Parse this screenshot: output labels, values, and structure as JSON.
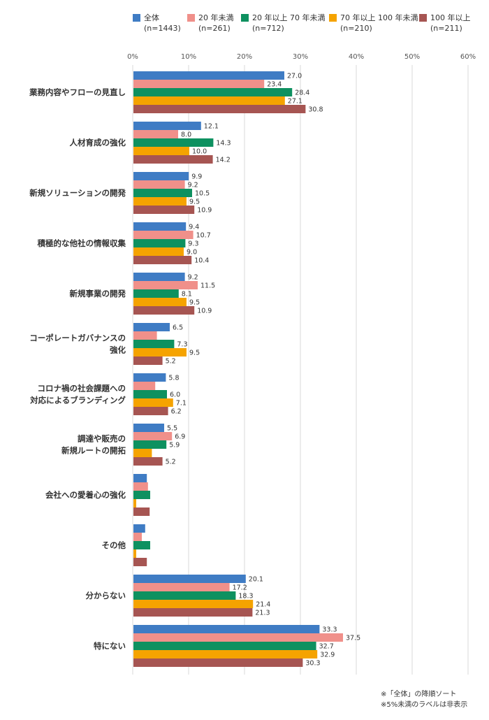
{
  "chart_data": {
    "type": "bar",
    "orientation": "horizontal",
    "xlim": [
      0,
      60
    ],
    "x_ticks": [
      "0%",
      "10%",
      "20%",
      "30%",
      "40%",
      "50%",
      "60%"
    ],
    "grid": true,
    "legend_position": "top",
    "categories": [
      "業務内容やフローの見直し",
      "人材育成の強化",
      "新規ソリューションの開発",
      "積極的な他社の情報収集",
      "新規事業の開発",
      "コーポレートガバナンスの\n強化",
      "コロナ禍の社会課題への\n対応によるブランディング",
      "調達や販売の\n新規ルートの開拓",
      "会社への愛着心の強化",
      "その他",
      "分からない",
      "特にない"
    ],
    "series": [
      {
        "name": "全体",
        "n": "(n=1443)",
        "color": "#3f7cc4",
        "values": [
          27.0,
          12.1,
          9.9,
          9.4,
          9.2,
          6.5,
          5.8,
          5.5,
          2.4,
          2.1,
          20.1,
          33.3
        ]
      },
      {
        "name": "20 年未満",
        "n": "(n=261)",
        "color": "#f0908a",
        "values": [
          23.4,
          8.0,
          9.2,
          10.7,
          11.5,
          4.2,
          3.9,
          6.9,
          2.6,
          1.5,
          17.2,
          37.5
        ]
      },
      {
        "name": "20 年以上 70 年未満",
        "n": "(n=712)",
        "color": "#0e9160",
        "values": [
          28.4,
          14.3,
          10.5,
          9.3,
          8.1,
          7.3,
          6.0,
          5.9,
          3.0,
          3.0,
          18.3,
          32.7
        ]
      },
      {
        "name": "70 年以上 100 年未満",
        "n": "(n=210)",
        "color": "#f5a300",
        "values": [
          27.1,
          10.0,
          9.5,
          9.0,
          9.5,
          9.5,
          7.1,
          3.3,
          0.5,
          0.5,
          21.4,
          32.9
        ]
      },
      {
        "name": "100 年以上",
        "n": "(n=211)",
        "color": "#a65552",
        "values": [
          30.8,
          14.2,
          10.9,
          10.4,
          10.9,
          5.2,
          6.2,
          5.2,
          2.9,
          2.4,
          21.3,
          30.3
        ]
      }
    ],
    "label_threshold": 5
  },
  "notes": [
    "※「全体」の降順ソート",
    "※5%未満のラベルは非表示"
  ]
}
